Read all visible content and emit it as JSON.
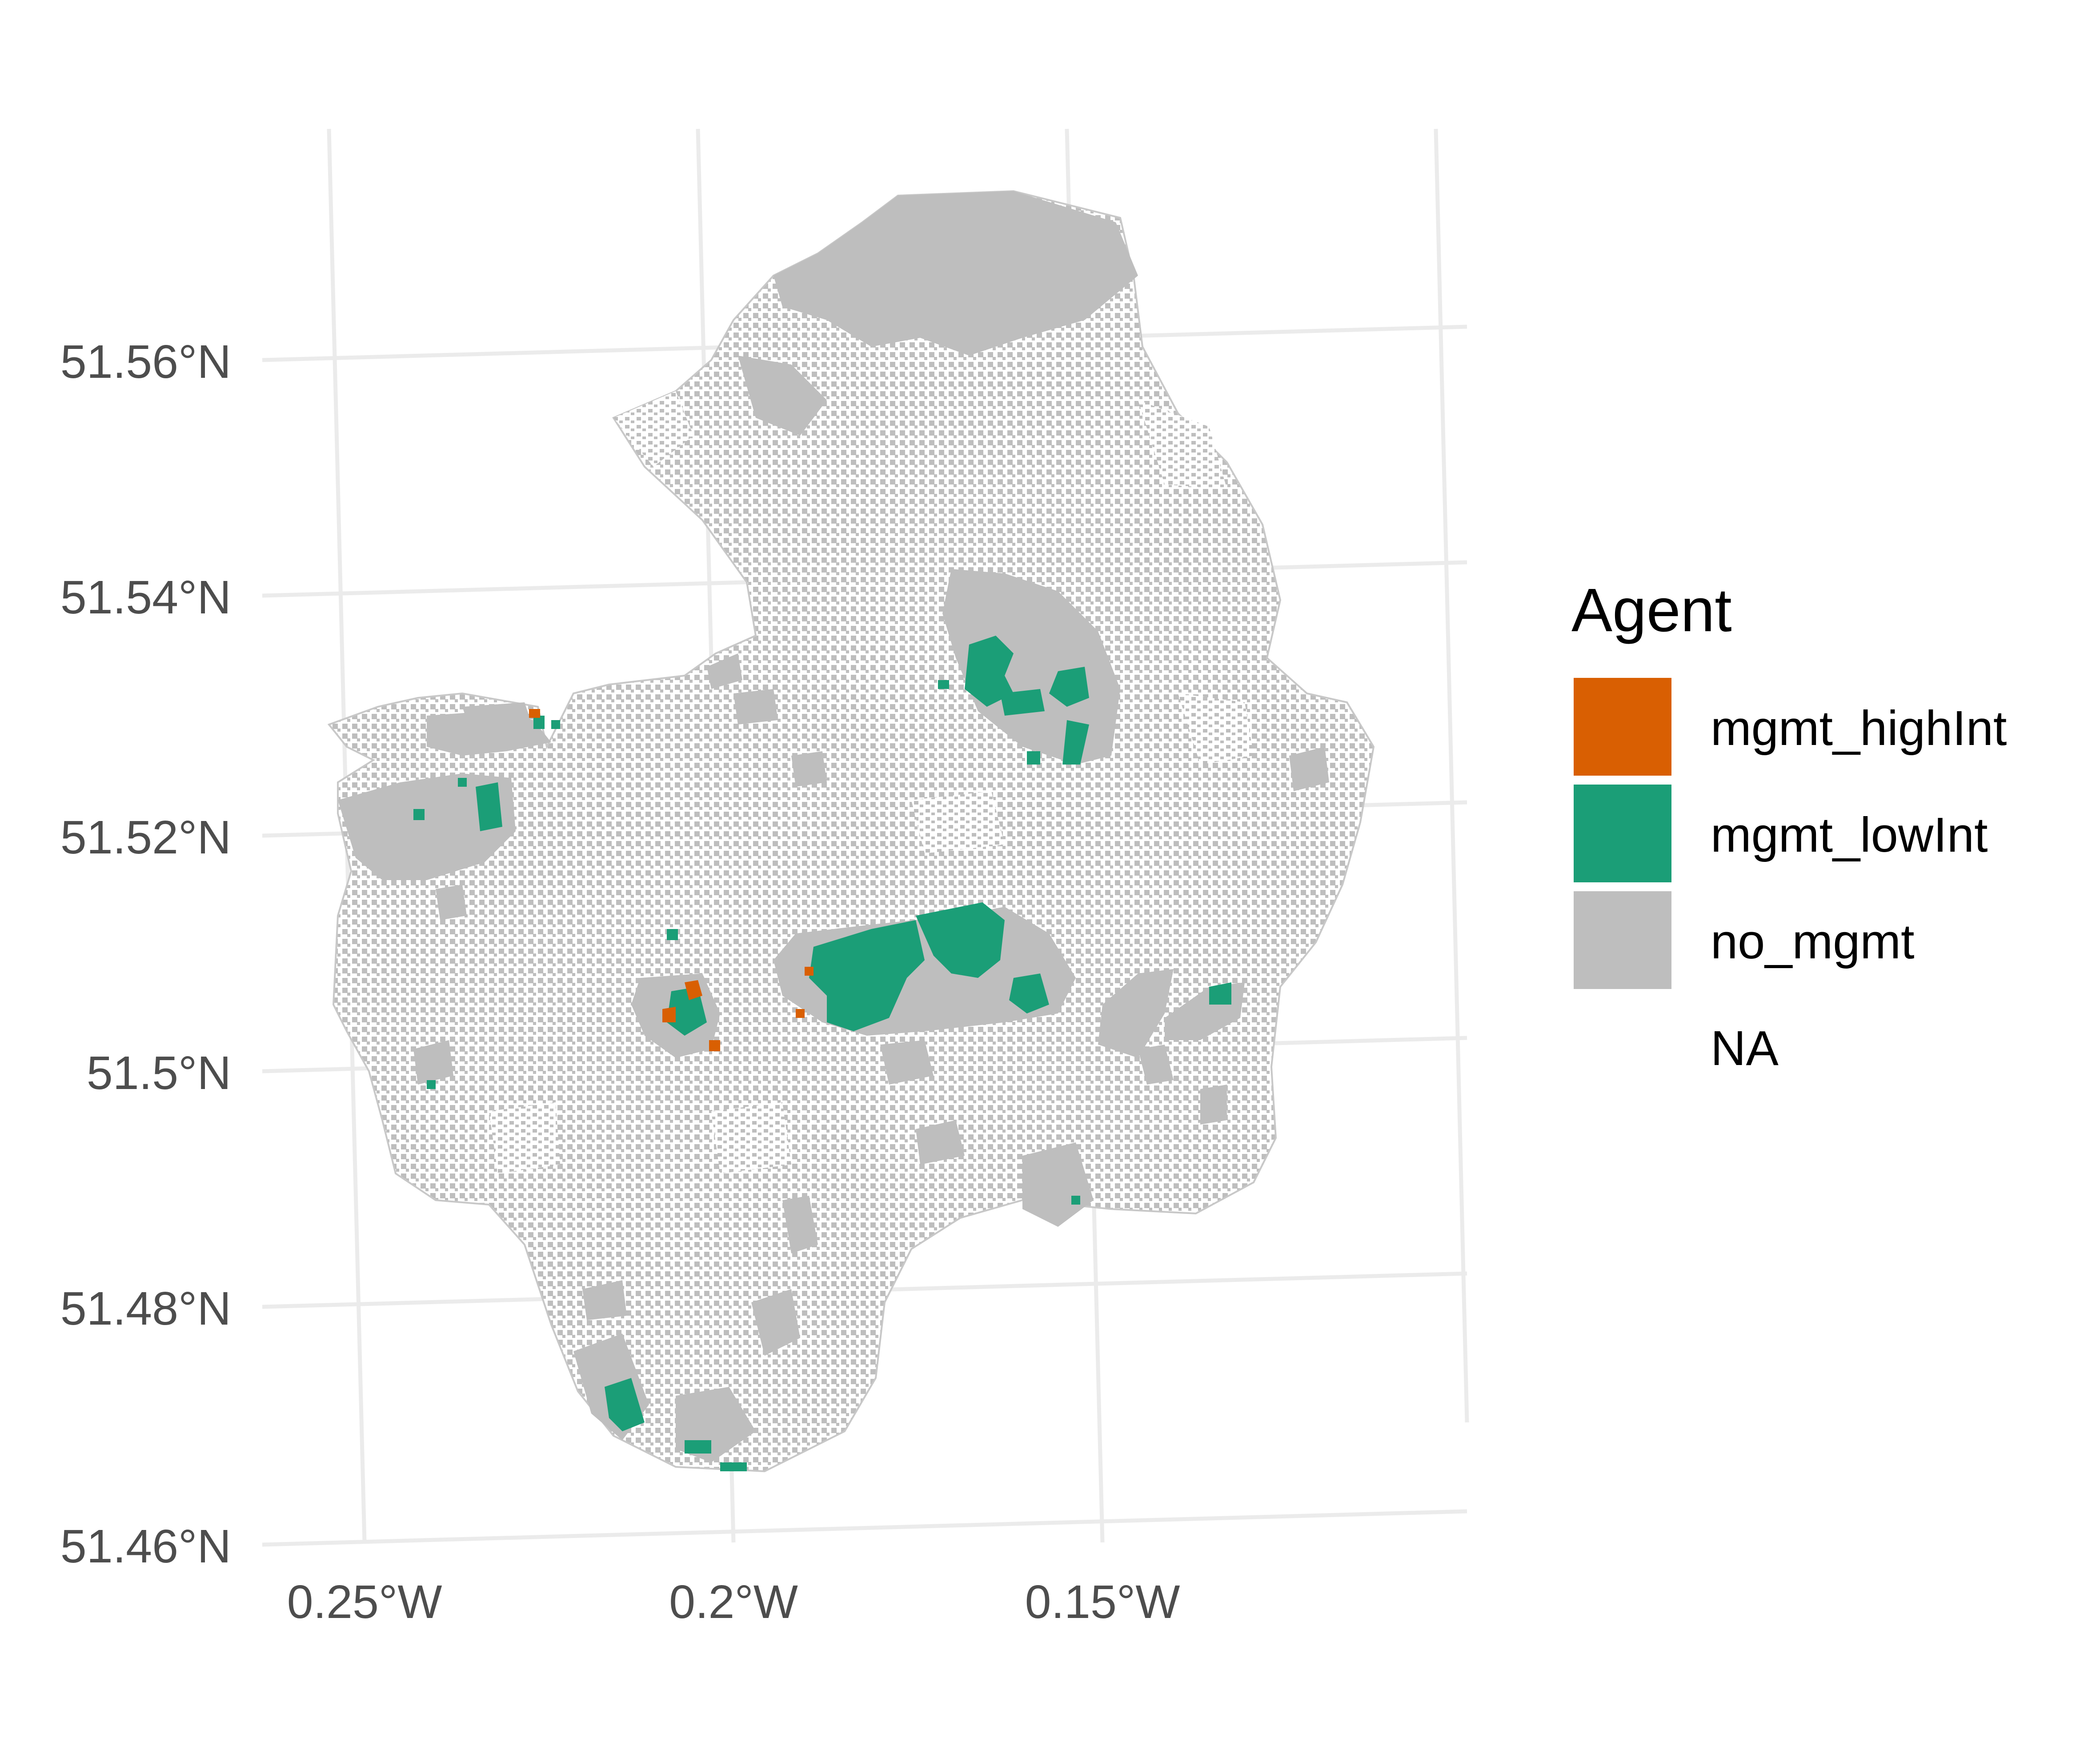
{
  "map": {
    "lat_labels": [
      "51.56°N",
      "51.54°N",
      "51.52°N",
      "51.5°N",
      "51.48°N",
      "51.46°N"
    ],
    "lon_labels": [
      "0.25°W",
      "0.2°W",
      "0.15°W"
    ],
    "grid": true
  },
  "legend": {
    "title": "Agent",
    "placement": "right",
    "items": [
      {
        "label": "mgmt_highInt",
        "color": "#D95F02"
      },
      {
        "label": "mgmt_lowInt",
        "color": "#1B9E77"
      },
      {
        "label": "no_mgmt",
        "color": "#BEBEBE"
      },
      {
        "label": "NA",
        "color": ""
      }
    ]
  },
  "colors": {
    "background": "#FFFFFF",
    "grid": "#EBEBEB",
    "land": "#BEBEBE",
    "high": "#D95F02",
    "low": "#1B9E77",
    "tick_text": "#4D4D4D"
  }
}
